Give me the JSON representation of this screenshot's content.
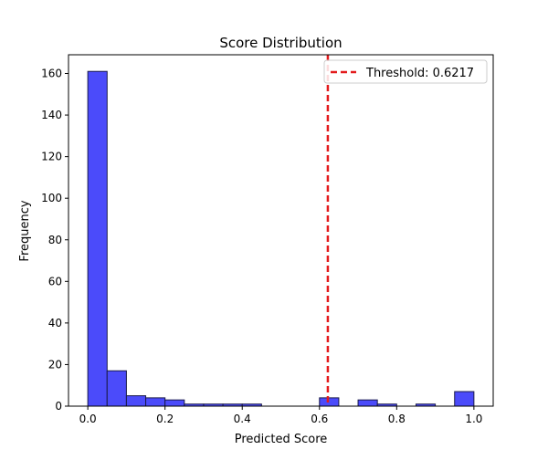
{
  "chart_data": {
    "type": "bar",
    "title": "Score Distribution",
    "xlabel": "Predicted Score",
    "ylabel": "Frequency",
    "xlim": [
      -0.05,
      1.05
    ],
    "ylim": [
      0,
      169
    ],
    "x_ticks": [
      {
        "value": 0.0,
        "label": "0.0"
      },
      {
        "value": 0.2,
        "label": "0.2"
      },
      {
        "value": 0.4,
        "label": "0.4"
      },
      {
        "value": 0.6,
        "label": "0.6"
      },
      {
        "value": 0.8,
        "label": "0.8"
      },
      {
        "value": 1.0,
        "label": "1.0"
      }
    ],
    "y_ticks": [
      {
        "value": 0,
        "label": "0"
      },
      {
        "value": 20,
        "label": "20"
      },
      {
        "value": 40,
        "label": "40"
      },
      {
        "value": 60,
        "label": "60"
      },
      {
        "value": 80,
        "label": "80"
      },
      {
        "value": 100,
        "label": "100"
      },
      {
        "value": 120,
        "label": "120"
      },
      {
        "value": 140,
        "label": "140"
      },
      {
        "value": 160,
        "label": "160"
      }
    ],
    "bins": [
      {
        "start": 0.0,
        "end": 0.05,
        "count": 161
      },
      {
        "start": 0.05,
        "end": 0.1,
        "count": 17
      },
      {
        "start": 0.1,
        "end": 0.15,
        "count": 5
      },
      {
        "start": 0.15,
        "end": 0.2,
        "count": 4
      },
      {
        "start": 0.2,
        "end": 0.25,
        "count": 3
      },
      {
        "start": 0.25,
        "end": 0.3,
        "count": 1
      },
      {
        "start": 0.3,
        "end": 0.35,
        "count": 1
      },
      {
        "start": 0.35,
        "end": 0.4,
        "count": 1
      },
      {
        "start": 0.4,
        "end": 0.45,
        "count": 1
      },
      {
        "start": 0.45,
        "end": 0.5,
        "count": 0
      },
      {
        "start": 0.5,
        "end": 0.55,
        "count": 0
      },
      {
        "start": 0.55,
        "end": 0.6,
        "count": 0
      },
      {
        "start": 0.6,
        "end": 0.65,
        "count": 4
      },
      {
        "start": 0.65,
        "end": 0.7,
        "count": 0
      },
      {
        "start": 0.7,
        "end": 0.75,
        "count": 3
      },
      {
        "start": 0.75,
        "end": 0.8,
        "count": 1
      },
      {
        "start": 0.8,
        "end": 0.85,
        "count": 0
      },
      {
        "start": 0.85,
        "end": 0.9,
        "count": 1
      },
      {
        "start": 0.9,
        "end": 0.95,
        "count": 0
      },
      {
        "start": 0.95,
        "end": 1.0,
        "count": 7
      }
    ],
    "bar_color": "#4b4bfa",
    "bar_edge_color": "#1a1a4a",
    "threshold": {
      "value": 0.6217,
      "label": "Threshold: 0.6217",
      "color": "#e31a1c",
      "style": "dashed"
    },
    "legend_position": "top-right",
    "grid": false
  }
}
